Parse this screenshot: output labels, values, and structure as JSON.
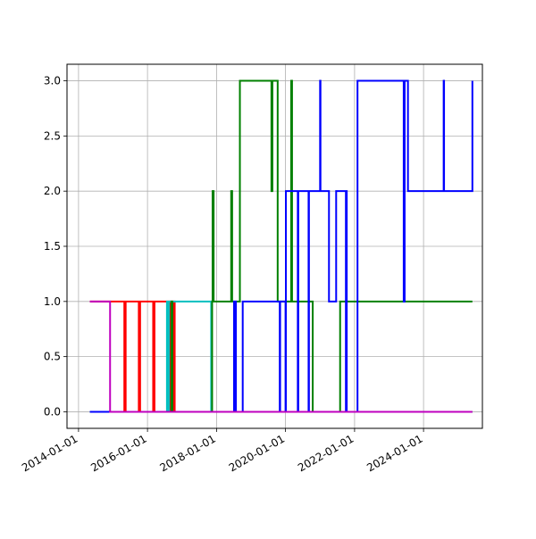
{
  "chart_data": {
    "type": "line",
    "title": "",
    "xlabel": "",
    "ylabel": "",
    "x_axis_type": "date",
    "xlim": [
      "2013-09-01",
      "2025-09-15"
    ],
    "ylim": [
      -0.15,
      3.15
    ],
    "x_ticks": [
      "2014-01-01",
      "2016-01-01",
      "2018-01-01",
      "2020-01-01",
      "2022-01-01",
      "2024-01-01"
    ],
    "y_ticks": [
      0.0,
      0.5,
      1.0,
      1.5,
      2.0,
      2.5,
      3.0
    ],
    "y_tick_labels": [
      "0.0",
      "0.5",
      "1.0",
      "1.5",
      "2.0",
      "2.5",
      "3.0"
    ],
    "grid": true,
    "step_style": "post",
    "series": [
      {
        "color": "#ff0000",
        "x": [
          "2014-05-01",
          "2015-05-01",
          "2015-05-15",
          "2015-10-01",
          "2015-10-15",
          "2016-03-01",
          "2016-03-15",
          "2016-09-01",
          "2016-09-15",
          "2016-09-25",
          "2016-10-05",
          "2016-10-15",
          "2016-11-01",
          "2017-11-10",
          "2018-03-01",
          "2018-03-15",
          "2020-06-01",
          "2025-06-01"
        ],
        "y": [
          1,
          0,
          1,
          0,
          1,
          0,
          1,
          0,
          1,
          0,
          1,
          0,
          0,
          0,
          0,
          0,
          0,
          0
        ]
      },
      {
        "color": "#00bfbf",
        "x": [
          "2014-05-01",
          "2016-07-15",
          "2016-07-25",
          "2016-08-05",
          "2016-08-15",
          "2017-10-25",
          "2017-11-05",
          "2025-06-01"
        ],
        "y": [
          0,
          0,
          1,
          0,
          1,
          1,
          0,
          0
        ]
      },
      {
        "color": "#008000",
        "x": [
          "2014-05-01",
          "2016-09-10",
          "2016-09-20",
          "2017-11-15",
          "2017-11-20",
          "2017-12-01",
          "2018-06-01",
          "2018-06-05",
          "2018-06-15",
          "2018-09-01",
          "2018-09-05",
          "2018-10-01",
          "2019-08-01",
          "2019-08-05",
          "2019-08-15",
          "2019-10-01",
          "2019-10-10",
          "2020-03-01",
          "2020-03-05",
          "2020-03-10",
          "2020-10-01",
          "2020-10-15",
          "2021-04-01",
          "2021-07-01",
          "2021-08-01",
          "2025-06-01"
        ],
        "y": [
          0,
          1,
          0,
          1,
          2,
          1,
          1,
          2,
          1,
          1,
          3,
          3,
          3,
          2,
          3,
          3,
          1,
          3,
          3,
          1,
          1,
          0,
          0,
          0,
          1,
          1
        ]
      },
      {
        "color": "#0000ff",
        "x": [
          "2014-05-01",
          "2018-07-01",
          "2018-07-05",
          "2018-07-10",
          "2018-07-20",
          "2018-07-25",
          "2018-10-01",
          "2018-10-05",
          "2019-11-01",
          "2019-11-05",
          "2020-01-01",
          "2020-01-05",
          "2020-05-10",
          "2020-05-15",
          "2020-09-01",
          "2020-09-05",
          "2021-01-01",
          "2021-01-05",
          "2021-04-01",
          "2021-04-05",
          "2021-06-01",
          "2021-06-20",
          "2021-09-20",
          "2021-10-01",
          "2021-10-05",
          "2021-10-10",
          "2022-02-01",
          "2023-06-01",
          "2023-06-05",
          "2023-06-15",
          "2023-07-15",
          "2023-07-20",
          "2024-08-01",
          "2024-08-05",
          "2025-06-01"
        ],
        "y": [
          0,
          0,
          1,
          0,
          1,
          0,
          0,
          1,
          0,
          1,
          0,
          2,
          0,
          2,
          0,
          2,
          3,
          2,
          2,
          1,
          1,
          2,
          2,
          0,
          2,
          0,
          3,
          3,
          1,
          3,
          3,
          2,
          3,
          2,
          3
        ]
      },
      {
        "color": "#bf00bf",
        "x": [
          "2014-05-01",
          "2014-12-01",
          "2025-06-01"
        ],
        "y": [
          1,
          0,
          0
        ]
      }
    ]
  }
}
